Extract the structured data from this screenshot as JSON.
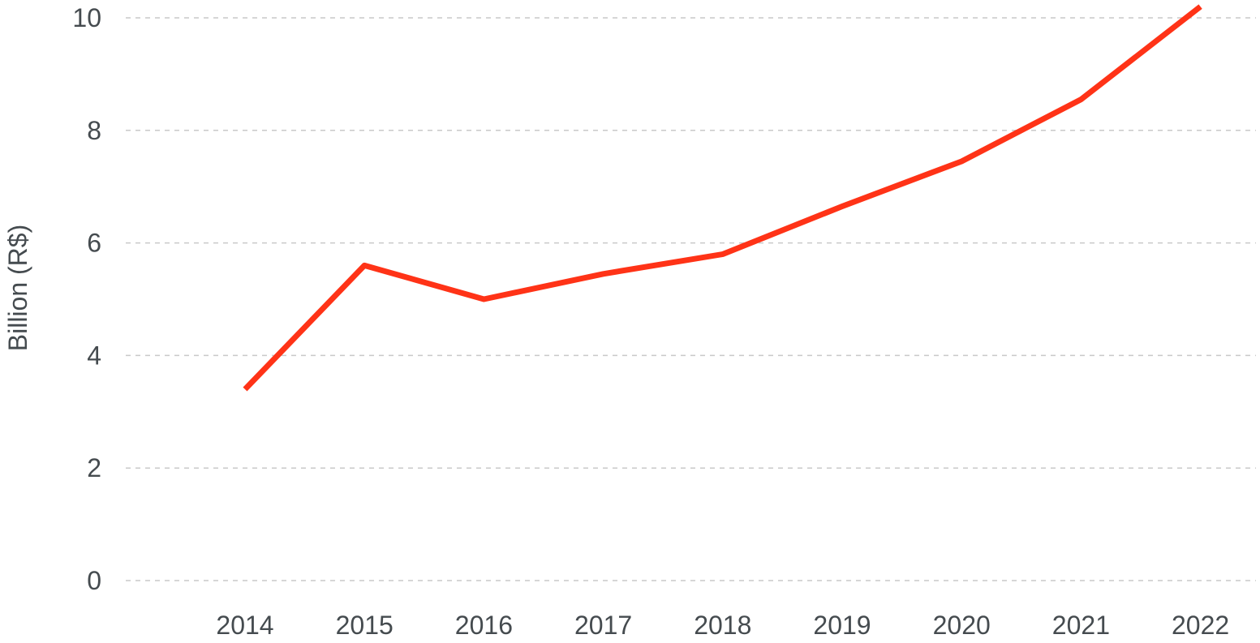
{
  "chart_data": {
    "type": "line",
    "title": "",
    "xlabel": "",
    "ylabel": "Billion (R$)",
    "categories": [
      "2014",
      "2015",
      "2016",
      "2017",
      "2018",
      "2019",
      "2020",
      "2021",
      "2022"
    ],
    "series": [
      {
        "values": [
          3.4,
          5.6,
          5.0,
          5.45,
          5.8,
          6.65,
          7.45,
          8.55,
          10.2
        ],
        "color": "#ff3317"
      }
    ],
    "ylim": [
      0,
      10
    ],
    "yticks": [
      0,
      2,
      4,
      6,
      8,
      10
    ],
    "grid": true,
    "grid_style": "dashed-horizontal",
    "legend": "none"
  }
}
